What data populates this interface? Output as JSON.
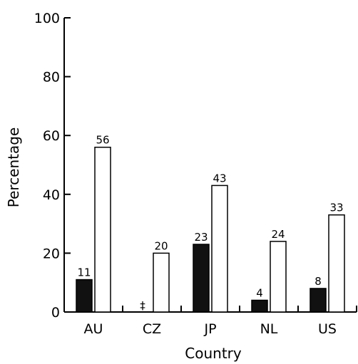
{
  "chart_data": {
    "type": "bar",
    "xlabel": "Country",
    "ylabel": "Percentage",
    "ylim": [
      0,
      100
    ],
    "yticks": [
      "0",
      "20",
      "40",
      "60",
      "80",
      "100"
    ],
    "grid": false,
    "categories": [
      "AU",
      "CZ",
      "JP",
      "NL",
      "US"
    ],
    "series": [
      {
        "color": "#111111",
        "values": [
          11,
          null,
          23,
          4,
          8
        ],
        "labels": [
          "11",
          "‡",
          "23",
          "4",
          "8"
        ]
      },
      {
        "color": "#ffffff",
        "values": [
          56,
          20,
          43,
          24,
          33
        ],
        "labels": [
          "56",
          "20",
          "43",
          "24",
          "33"
        ]
      }
    ]
  }
}
